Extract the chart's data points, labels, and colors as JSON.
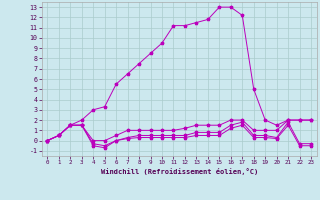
{
  "xlabel": "Windchill (Refroidissement éolien,°C)",
  "background_color": "#cce8ee",
  "grid_color": "#aacccc",
  "line_color": "#bb00bb",
  "xlim": [
    -0.5,
    23.5
  ],
  "ylim": [
    -1.5,
    13.5
  ],
  "xticks": [
    0,
    1,
    2,
    3,
    4,
    5,
    6,
    7,
    8,
    9,
    10,
    11,
    12,
    13,
    14,
    15,
    16,
    17,
    18,
    19,
    20,
    21,
    22,
    23
  ],
  "yticks": [
    -1,
    0,
    1,
    2,
    3,
    4,
    5,
    6,
    7,
    8,
    9,
    10,
    11,
    12,
    13
  ],
  "series1_x": [
    0,
    1,
    2,
    3,
    4,
    5,
    6,
    7,
    8,
    9,
    10,
    11,
    12,
    13,
    14,
    15,
    16,
    17,
    18,
    19,
    20,
    21,
    22,
    23
  ],
  "series1_y": [
    0,
    0.5,
    1.5,
    2,
    3,
    3.3,
    5.5,
    6.5,
    7.5,
    8.5,
    9.5,
    11.2,
    11.2,
    11.5,
    11.8,
    13,
    13,
    12.2,
    5,
    2,
    1.5,
    2,
    2,
    2
  ],
  "series2_x": [
    0,
    1,
    2,
    3,
    4,
    5,
    6,
    7,
    8,
    9,
    10,
    11,
    12,
    13,
    14,
    15,
    16,
    17,
    18,
    19,
    20,
    21,
    22,
    23
  ],
  "series2_y": [
    0,
    0.5,
    1.5,
    1.5,
    0,
    0,
    0.5,
    1,
    1,
    1,
    1,
    1,
    1.2,
    1.5,
    1.5,
    1.5,
    2,
    2,
    1,
    1,
    1,
    2,
    2,
    2
  ],
  "series3_x": [
    0,
    1,
    2,
    3,
    4,
    5,
    6,
    7,
    8,
    9,
    10,
    11,
    12,
    13,
    14,
    15,
    16,
    17,
    18,
    19,
    20,
    21,
    22,
    23
  ],
  "series3_y": [
    0,
    0.5,
    1.5,
    1.5,
    -0.3,
    -0.5,
    0,
    0.3,
    0.5,
    0.5,
    0.5,
    0.5,
    0.5,
    0.8,
    0.8,
    0.8,
    1.5,
    1.8,
    0.5,
    0.5,
    0.3,
    1.8,
    -0.3,
    -0.3
  ],
  "series4_x": [
    0,
    1,
    2,
    3,
    4,
    5,
    6,
    7,
    8,
    9,
    10,
    11,
    12,
    13,
    14,
    15,
    16,
    17,
    18,
    19,
    20,
    21,
    22,
    23
  ],
  "series4_y": [
    0,
    0.5,
    1.5,
    1.5,
    -0.5,
    -0.7,
    0,
    0.2,
    0.3,
    0.3,
    0.3,
    0.3,
    0.3,
    0.5,
    0.5,
    0.5,
    1.2,
    1.5,
    0.3,
    0.3,
    0.2,
    1.5,
    -0.5,
    -0.5
  ]
}
